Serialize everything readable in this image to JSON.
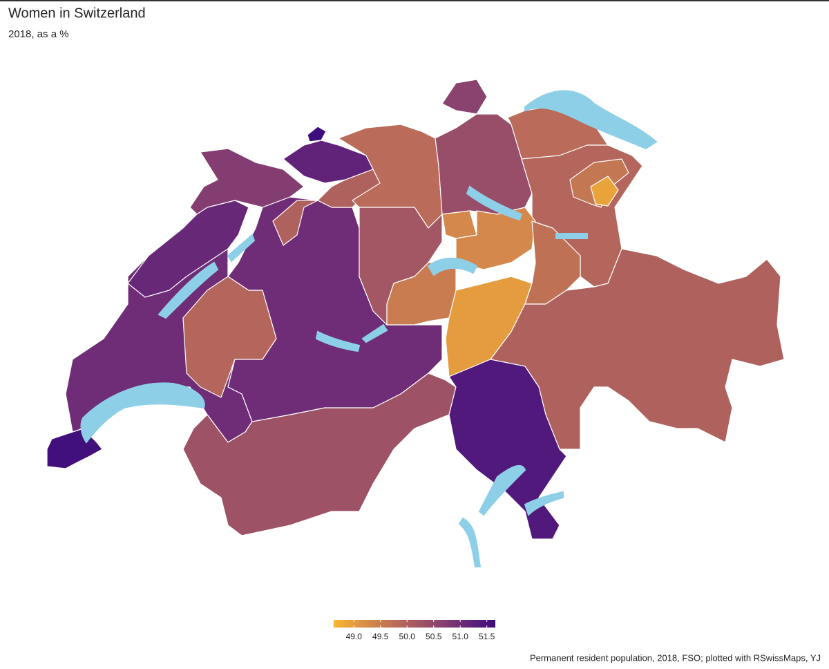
{
  "chart_data": {
    "type": "choropleth",
    "title": "Women in Switzerland",
    "subtitle": "2018, as a %",
    "caption": "Permanent resident population, 2018, FSO; plotted with RSwissMaps, YJ",
    "values": [
      51.6,
      51.0,
      50.3,
      49.9,
      51.1,
      50.7,
      51.0,
      51.7,
      51.2,
      50.0,
      49.8,
      50.4,
      50.6,
      49.8,
      49.9,
      49.6,
      48.9,
      50.2,
      49.3,
      49.3,
      49.5,
      49.0,
      49.7,
      50.0,
      51.4
    ],
    "colors": [
      "#f8b62f",
      "#d88c49",
      "#b8695a",
      "#954b6a",
      "#6c2a78",
      "#3d0d7d"
    ],
    "lim": [
      48.62,
      51.66
    ],
    "ticks": [
      {
        "value": 49,
        "label": "49.0"
      },
      49.5,
      {
        "value": 50,
        "label": "50.0"
      },
      50.5,
      {
        "value": 51,
        "label": "51.0"
      },
      51.5
    ],
    "lake_color": "#8ecfe8"
  }
}
